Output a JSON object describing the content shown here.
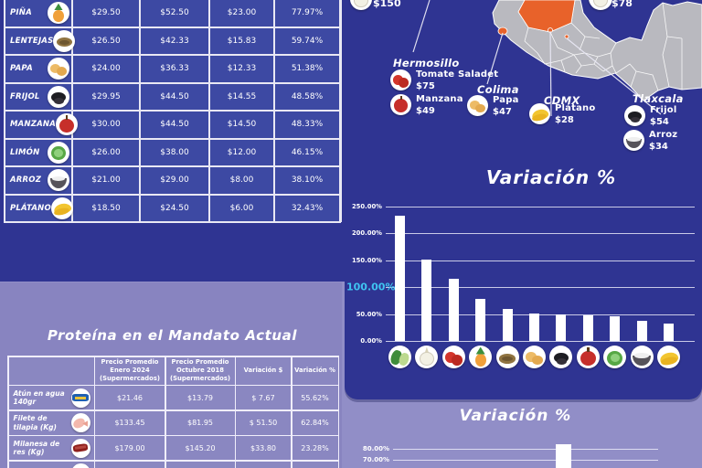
{
  "palette": {
    "navy": "#2f3492",
    "cell_blue": "#3d49a3",
    "panel_purple": "#8884c0",
    "page_purple": "#918ec7",
    "border_white": "#e9e8f4",
    "orange": "#e8622a",
    "map_gray": "#b9b9bf",
    "cyan": "#3fc4f1",
    "bar_white": "#ffffff"
  },
  "price_table": {
    "rows": [
      {
        "name": "PIÑA",
        "icon": "pina",
        "c1": "$29.50",
        "c2": "$52.50",
        "c3": "$23.00",
        "c4": "77.97%"
      },
      {
        "name": "LENTEJAS",
        "icon": "lentejas",
        "c1": "$26.50",
        "c2": "$42.33",
        "c3": "$15.83",
        "c4": "59.74%"
      },
      {
        "name": "PAPA",
        "icon": "papa",
        "c1": "$24.00",
        "c2": "$36.33",
        "c3": "$12.33",
        "c4": "51.38%"
      },
      {
        "name": "FRIJOL",
        "icon": "frijol",
        "c1": "$29.95",
        "c2": "$44.50",
        "c3": "$14.55",
        "c4": "48.58%"
      },
      {
        "name": "MANZANA",
        "icon": "manzana",
        "c1": "$30.00",
        "c2": "$44.50",
        "c3": "$14.50",
        "c4": "48.33%"
      },
      {
        "name": "LIMÓN",
        "icon": "limon",
        "c1": "$26.00",
        "c2": "$38.00",
        "c3": "$12.00",
        "c4": "46.15%"
      },
      {
        "name": "ARROZ",
        "icon": "arroz",
        "c1": "$21.00",
        "c2": "$29.00",
        "c3": "$8.00",
        "c4": "38.10%"
      },
      {
        "name": "PLÁTANO",
        "icon": "platano",
        "c1": "$18.50",
        "c2": "$24.50",
        "c3": "$6.00",
        "c4": "32.43%"
      }
    ]
  },
  "map_section": {
    "partial_left_price": "$150",
    "partial_left_icon": "cebolla",
    "partial_right_price": "$78",
    "partial_right_icon": "cebolla",
    "cities": [
      {
        "name": "Hermosillo",
        "items": [
          {
            "icon": "tomate",
            "label": "Tomate Saladet",
            "price": "$75"
          },
          {
            "icon": "manzana",
            "label": "Manzana",
            "price": "$49"
          }
        ]
      },
      {
        "name": "Colima",
        "items": [
          {
            "icon": "papa",
            "label": "Papa",
            "price": "$47"
          }
        ]
      },
      {
        "name": "CDMX",
        "items": [
          {
            "icon": "platano",
            "label": "Plátano",
            "price": "$28"
          }
        ]
      },
      {
        "name": "Tlaxcala",
        "items": [
          {
            "icon": "frijol",
            "label": "Frijol",
            "price": "$54"
          },
          {
            "icon": "arroz",
            "label": "Arroz",
            "price": "$34"
          }
        ]
      }
    ]
  },
  "chart1": {
    "title": "Variación %",
    "ticks": [
      {
        "label": "250.00%",
        "value": 250
      },
      {
        "label": "200.00%",
        "value": 200
      },
      {
        "label": "150.00%",
        "value": 150
      },
      {
        "label": "100.00%",
        "value": 100,
        "highlight": true
      },
      {
        "label": "50.00%",
        "value": 50
      },
      {
        "label": "0.00%",
        "value": 0
      }
    ],
    "bars": [
      {
        "icon": "calabacita",
        "value": 233
      },
      {
        "icon": "cebolla",
        "value": 151
      },
      {
        "icon": "tomate",
        "value": 116
      },
      {
        "icon": "pina",
        "value": 77.97
      },
      {
        "icon": "lentejas",
        "value": 59.74
      },
      {
        "icon": "papa",
        "value": 51.38
      },
      {
        "icon": "frijol",
        "value": 48.58
      },
      {
        "icon": "manzana",
        "value": 48.33
      },
      {
        "icon": "limon",
        "value": 46.15
      },
      {
        "icon": "arroz",
        "value": 38.1
      },
      {
        "icon": "platano",
        "value": 32.43
      }
    ]
  },
  "protein_section": {
    "title": "Proteína en el Mandato Actual",
    "headers": [
      "",
      "Precio Promedio Enero 2024 (Supermercados)",
      "Precio Promedio Octubre 2018 (Supermercados)",
      "Variación $",
      "Variación %"
    ],
    "rows": [
      {
        "name": "Atún en agua 140gr",
        "icon": "atun",
        "c1": "$21.46",
        "c2": "$13.79",
        "c3": "$ 7.67",
        "c4": "55.62%"
      },
      {
        "name": "Filete de tilapia (Kg)",
        "icon": "tilapia",
        "c1": "$133.45",
        "c2": "$81.95",
        "c3": "$ 51.50",
        "c4": "62.84%"
      },
      {
        "name": "Milanesa de res (Kg)",
        "icon": "res",
        "c1": "$179.00",
        "c2": "$145.20",
        "c3": "$33.80",
        "c4": "23.28%"
      },
      {
        "name": "",
        "icon": "tilapia",
        "c1": "",
        "c2": "",
        "c3": "",
        "c4": "",
        "partial": true
      }
    ]
  },
  "chart2": {
    "title": "Variación %",
    "ticks": [
      {
        "label": "80.00%",
        "value": 80
      },
      {
        "label": "70.00%",
        "value": 70
      }
    ],
    "visible_bar_value": 84
  },
  "chart_data": [
    {
      "type": "bar",
      "title": "Variación %",
      "categories": [
        "Calabacita",
        "Cebolla",
        "Tomate",
        "Piña",
        "Lentejas",
        "Papa",
        "Frijol",
        "Manzana",
        "Limón",
        "Arroz",
        "Plátano"
      ],
      "values": [
        233,
        151,
        116,
        77.97,
        59.74,
        51.38,
        48.58,
        48.33,
        46.15,
        38.1,
        32.43
      ],
      "xlabel": "",
      "ylabel": "",
      "ylim": [
        0,
        250
      ],
      "yticks": [
        "0.00%",
        "50.00%",
        "100.00%",
        "150.00%",
        "200.00%",
        "250.00%"
      ],
      "highlighted_tick": "100.00%",
      "grid": true,
      "legend": "none",
      "note": "categories shown as food icons below each bar"
    },
    {
      "type": "bar",
      "title": "Variación %",
      "categories": [
        "(cut off)"
      ],
      "values": [
        84
      ],
      "ylim_visible": [
        70,
        80
      ],
      "yticks_visible": [
        "70.00%",
        "80.00%"
      ],
      "grid": true,
      "note": "chart cropped at bottom edge of image; single bar visible reaching ~84%"
    }
  ]
}
